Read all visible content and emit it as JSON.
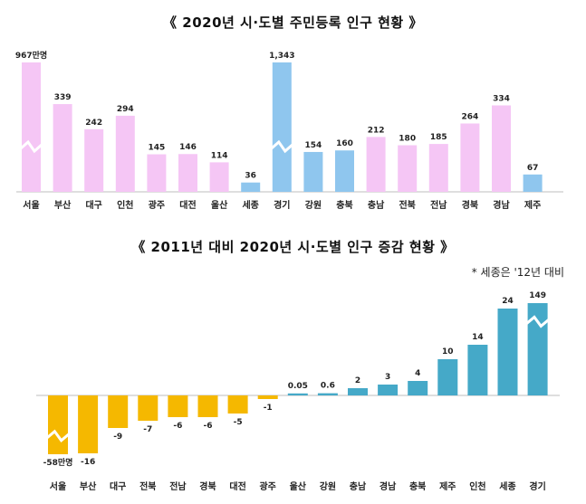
{
  "chart_data": [
    {
      "type": "bar",
      "title": "《 2020년 시·도별 주민등록 인구 현황 》",
      "categories": [
        "서울",
        "부산",
        "대구",
        "인천",
        "광주",
        "대전",
        "울산",
        "세종",
        "경기",
        "강원",
        "충북",
        "충남",
        "전북",
        "전남",
        "경북",
        "경남",
        "제주"
      ],
      "values": [
        967,
        339,
        242,
        294,
        145,
        146,
        114,
        36,
        1343,
        154,
        160,
        212,
        180,
        185,
        264,
        334,
        67
      ],
      "labels": [
        "967만명",
        "339",
        "242",
        "294",
        "145",
        "146",
        "114",
        "36",
        "1,343",
        "154",
        "160",
        "212",
        "180",
        "185",
        "264",
        "334",
        "67"
      ],
      "broken": [
        0,
        8
      ],
      "colors": [
        "#f5c6f5",
        "#f5c6f5",
        "#f5c6f5",
        "#f5c6f5",
        "#f5c6f5",
        "#f5c6f5",
        "#f5c6f5",
        "#8fc6ee",
        "#8fc6ee",
        "#8fc6ee",
        "#8fc6ee",
        "#f5c6f5",
        "#f5c6f5",
        "#f5c6f5",
        "#f5c6f5",
        "#f5c6f5",
        "#8fc6ee"
      ]
    },
    {
      "type": "bar",
      "title": "《 2011년 대비 2020년 시·도별 인구 증감 현황 》",
      "note": "* 세종은 '12년 대비",
      "categories": [
        "서울",
        "부산",
        "대구",
        "전북",
        "전남",
        "경북",
        "대전",
        "광주",
        "울산",
        "강원",
        "충남",
        "경남",
        "충북",
        "제주",
        "인천",
        "세종",
        "경기"
      ],
      "values": [
        -58,
        -16,
        -9,
        -7,
        -6,
        -6,
        -5,
        -1,
        0.05,
        0.6,
        2,
        3,
        4,
        10,
        14,
        24,
        149
      ],
      "labels": [
        "-58만명",
        "-16",
        "-9",
        "-7",
        "-6",
        "-6",
        "-5",
        "-1",
        "0.05",
        "0.6",
        "2",
        "3",
        "4",
        "10",
        "14",
        "24",
        "149"
      ],
      "broken": [
        0,
        16
      ],
      "colors": {
        "negative": "#f5b800",
        "positive": "#45a9c8"
      }
    }
  ]
}
